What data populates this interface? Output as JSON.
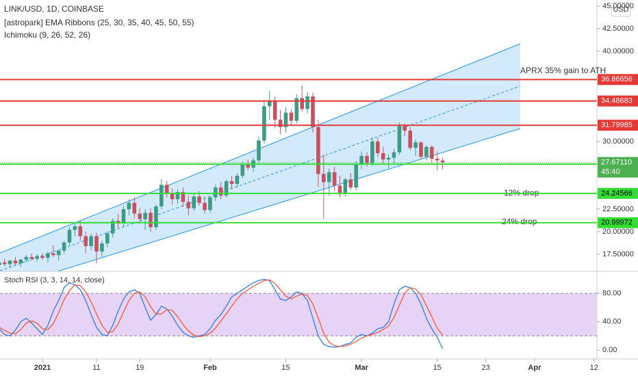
{
  "chart_data": [
    {
      "type": "candlestick",
      "title": "LINK/USD, 1D, COINBASE",
      "indicators": [
        "[astropark] EMA Ribbons (25, 30, 35, 40, 45, 50, 55)",
        "Ichimoku (9, 26, 52, 26)"
      ],
      "currency": "USD",
      "up_color": "#3d9a84",
      "down_color": "#c7525f",
      "categories": [
        null,
        null,
        null,
        null,
        null,
        null,
        null,
        null,
        "2021",
        null,
        null,
        null,
        null,
        null,
        null,
        null,
        null,
        null,
        "11",
        null,
        null,
        null,
        null,
        null,
        null,
        null,
        "19",
        null,
        null,
        null,
        null,
        null,
        null,
        null,
        null,
        null,
        null,
        null,
        null,
        "Feb",
        null,
        null,
        null,
        null,
        null,
        null,
        null,
        null,
        null,
        null,
        null,
        null,
        null,
        "15",
        null,
        null,
        null,
        null,
        null,
        null,
        null,
        null,
        null,
        null,
        null,
        null,
        null,
        "Mar",
        null,
        null,
        null,
        null,
        null,
        null,
        null,
        null,
        null,
        null,
        null,
        null,
        null,
        "15",
        null,
        null,
        null,
        null,
        null,
        null,
        null,
        null,
        "23",
        null,
        null,
        null,
        null,
        null,
        null,
        null,
        null,
        "Apr",
        null,
        null,
        null,
        null,
        null,
        null,
        null,
        null,
        null,
        null,
        "12",
        null
      ],
      "values": [
        [
          16.3,
          16.8,
          15.8,
          16.6
        ],
        [
          16.6,
          17.0,
          16.2,
          16.4
        ],
        [
          16.4,
          16.9,
          16.0,
          16.8
        ],
        [
          16.8,
          17.2,
          16.3,
          16.5
        ],
        [
          16.5,
          17.0,
          16.1,
          16.9
        ],
        [
          16.9,
          17.4,
          16.6,
          17.2
        ],
        [
          17.2,
          17.6,
          16.8,
          17.0
        ],
        [
          17.0,
          17.5,
          16.7,
          17.3
        ],
        [
          17.3,
          17.6,
          16.9,
          17.1
        ],
        [
          17.1,
          17.8,
          16.6,
          17.6
        ],
        [
          17.6,
          18.5,
          17.2,
          17.4
        ],
        [
          17.4,
          18.0,
          16.8,
          17.9
        ],
        [
          17.9,
          19.0,
          17.5,
          18.8
        ],
        [
          18.8,
          20.5,
          18.5,
          20.2
        ],
        [
          20.2,
          21.0,
          19.5,
          20.6
        ],
        [
          20.6,
          21.2,
          19.0,
          19.5
        ],
        [
          19.5,
          20.0,
          17.6,
          18.4
        ],
        [
          18.4,
          19.8,
          17.9,
          19.5
        ],
        [
          19.5,
          19.9,
          16.5,
          17.8
        ],
        [
          17.8,
          19.0,
          17.2,
          18.7
        ],
        [
          18.7,
          20.0,
          18.3,
          19.8
        ],
        [
          19.8,
          21.5,
          19.4,
          21.2
        ],
        [
          21.2,
          22.0,
          20.4,
          20.9
        ],
        [
          20.9,
          22.8,
          20.6,
          22.5
        ],
        [
          22.5,
          23.6,
          21.8,
          23.2
        ],
        [
          23.2,
          23.8,
          21.5,
          22.0
        ],
        [
          22.0,
          22.6,
          20.9,
          21.4
        ],
        [
          21.4,
          22.5,
          20.2,
          22.1
        ],
        [
          22.1,
          22.6,
          20.0,
          20.5
        ],
        [
          20.5,
          23.0,
          20.2,
          22.8
        ],
        [
          22.8,
          25.8,
          22.5,
          25.2
        ],
        [
          25.2,
          25.6,
          23.8,
          24.3
        ],
        [
          24.3,
          24.8,
          23.0,
          23.6
        ],
        [
          23.6,
          24.7,
          23.1,
          24.4
        ],
        [
          24.4,
          24.9,
          22.8,
          23.3
        ],
        [
          23.3,
          24.0,
          21.8,
          22.6
        ],
        [
          22.6,
          24.2,
          22.3,
          23.9
        ],
        [
          23.9,
          24.5,
          22.9,
          23.2
        ],
        [
          23.2,
          23.9,
          22.0,
          22.4
        ],
        [
          22.4,
          24.0,
          22.1,
          23.8
        ],
        [
          23.8,
          25.2,
          23.4,
          24.9
        ],
        [
          24.9,
          25.5,
          23.6,
          24.0
        ],
        [
          24.0,
          25.8,
          23.8,
          25.6
        ],
        [
          25.6,
          26.2,
          24.8,
          25.3
        ],
        [
          25.3,
          26.5,
          25.0,
          26.2
        ],
        [
          26.2,
          27.8,
          25.9,
          27.5
        ],
        [
          27.5,
          28.0,
          26.8,
          27.1
        ],
        [
          27.1,
          28.2,
          26.6,
          27.9
        ],
        [
          27.9,
          30.5,
          27.6,
          30.1
        ],
        [
          30.1,
          34.6,
          29.8,
          33.9
        ],
        [
          33.9,
          35.6,
          32.4,
          34.5
        ],
        [
          34.5,
          35.0,
          31.5,
          32.4
        ],
        [
          32.4,
          33.5,
          30.8,
          31.6
        ],
        [
          31.6,
          33.8,
          31.0,
          33.2
        ],
        [
          33.2,
          33.6,
          31.9,
          32.3
        ],
        [
          32.3,
          35.2,
          32.0,
          34.8
        ],
        [
          34.8,
          36.2,
          33.3,
          33.6
        ],
        [
          33.6,
          35.5,
          33.1,
          35.0
        ],
        [
          35.0,
          35.4,
          31.0,
          31.6
        ],
        [
          31.6,
          32.4,
          25.0,
          26.4
        ],
        [
          26.4,
          28.5,
          21.4,
          25.5
        ],
        [
          25.5,
          27.0,
          24.0,
          26.6
        ],
        [
          26.6,
          27.2,
          24.5,
          25.1
        ],
        [
          25.1,
          26.2,
          23.8,
          24.3
        ],
        [
          24.3,
          26.0,
          23.9,
          25.8
        ],
        [
          25.8,
          26.5,
          24.6,
          24.9
        ],
        [
          24.9,
          27.8,
          24.6,
          27.5
        ],
        [
          27.5,
          28.9,
          26.9,
          28.4
        ],
        [
          28.4,
          28.8,
          27.2,
          27.6
        ],
        [
          27.6,
          30.5,
          27.3,
          30.0
        ],
        [
          30.0,
          30.4,
          28.3,
          28.7
        ],
        [
          28.7,
          29.4,
          27.5,
          28.0
        ],
        [
          28.0,
          28.6,
          27.0,
          28.2
        ],
        [
          28.2,
          29.2,
          27.6,
          28.8
        ],
        [
          28.8,
          32.1,
          28.5,
          31.8
        ],
        [
          31.8,
          32.0,
          30.6,
          31.2
        ],
        [
          31.2,
          31.6,
          29.0,
          29.3
        ],
        [
          29.3,
          30.2,
          28.4,
          29.9
        ],
        [
          29.9,
          30.0,
          28.0,
          28.3
        ],
        [
          28.3,
          29.6,
          27.9,
          29.4
        ],
        [
          29.4,
          29.6,
          27.6,
          28.1
        ],
        [
          28.1,
          28.9,
          26.8,
          27.9
        ],
        [
          27.9,
          28.2,
          26.9,
          27.67
        ],
        null,
        null,
        null,
        null,
        null,
        null,
        null,
        null,
        null,
        null,
        null,
        null,
        null,
        null,
        null,
        null,
        null,
        null,
        null,
        null,
        null,
        null,
        null,
        null,
        null,
        null,
        null,
        null
      ],
      "ylim": [
        15.6,
        45.68
      ],
      "yticks": [
        {
          "value": 17.5,
          "label": "17.50000"
        },
        {
          "value": 20,
          "label": "20.00000"
        },
        {
          "value": 22.5,
          "label": "22.50000"
        },
        {
          "value": 30,
          "label": "30.00000"
        },
        {
          "value": 40,
          "label": "40.00000"
        },
        {
          "value": 42.5,
          "label": "42.50000"
        },
        {
          "value": 45,
          "label": "45.00000"
        }
      ],
      "levels": [
        {
          "value": 36.86656,
          "color": "#e53935"
        },
        {
          "value": 34.48683,
          "color": "#e53935"
        },
        {
          "value": 31.79985,
          "color": "#e53935"
        },
        {
          "value": 27.48565,
          "color": "#33dd33"
        },
        {
          "value": 24.24566,
          "color": "#33dd33"
        },
        {
          "value": 20.99972,
          "color": "#33dd33"
        }
      ],
      "last_price": {
        "value": 27.6711,
        "label": "27.67110",
        "countdown": "45:40",
        "color": "#4caf50"
      },
      "annotations": [
        "APRX 35% gain to ATH",
        "12% drop",
        "24% drop"
      ]
    },
    {
      "type": "line",
      "title": "Stoch RSI (3, 3, 14, 14, close)",
      "series": [
        {
          "color": "#2f7de1",
          "values": [
            30,
            22,
            20,
            28,
            40,
            45,
            38,
            30,
            22,
            35,
            55,
            70,
            88,
            95,
            92,
            85,
            70,
            50,
            32,
            22,
            20,
            35,
            55,
            72,
            82,
            85,
            80,
            60,
            42,
            50,
            62,
            58,
            48,
            35,
            25,
            20,
            18,
            20,
            22,
            30,
            42,
            50,
            62,
            75,
            80,
            85,
            90,
            95,
            98,
            100,
            98,
            85,
            72,
            70,
            75,
            82,
            80,
            70,
            45,
            20,
            8,
            5,
            4,
            5,
            8,
            10,
            18,
            22,
            20,
            24,
            30,
            32,
            40,
            65,
            85,
            90,
            88,
            80,
            65,
            45,
            30,
            18,
            2,
            null,
            null,
            null,
            null,
            null,
            null,
            null,
            null,
            null,
            null,
            null,
            null,
            null,
            null,
            null,
            null,
            null,
            null,
            null,
            null,
            null,
            null,
            null,
            null,
            null,
            null,
            null,
            null
          ]
        },
        {
          "color": "#f05a3c",
          "values": [
            32,
            28,
            24,
            23,
            29,
            38,
            41,
            38,
            30,
            29,
            37,
            53,
            71,
            84,
            92,
            91,
            82,
            68,
            51,
            35,
            25,
            26,
            37,
            54,
            70,
            80,
            82,
            75,
            61,
            51,
            51,
            57,
            56,
            47,
            36,
            27,
            21,
            19,
            20,
            24,
            31,
            41,
            51,
            62,
            72,
            80,
            85,
            90,
            94,
            98,
            99,
            94,
            85,
            76,
            72,
            76,
            79,
            77,
            65,
            45,
            24,
            11,
            6,
            5,
            6,
            8,
            12,
            17,
            20,
            22,
            25,
            29,
            34,
            46,
            63,
            80,
            88,
            86,
            78,
            63,
            47,
            31,
            21,
            null,
            null,
            null,
            null,
            null,
            null,
            null,
            null,
            null,
            null,
            null,
            null,
            null,
            null,
            null,
            null,
            null,
            null,
            null,
            null,
            null,
            null,
            null,
            null,
            null,
            null,
            null,
            null
          ]
        }
      ],
      "band": [
        20,
        80
      ],
      "band_color": "#e6d3f5",
      "ylim": [
        -12.5,
        110
      ],
      "yticks": [
        {
          "value": 0,
          "label": "0.00"
        },
        {
          "value": 40,
          "label": "40.00"
        },
        {
          "value": 80,
          "label": "80.00"
        }
      ]
    }
  ]
}
